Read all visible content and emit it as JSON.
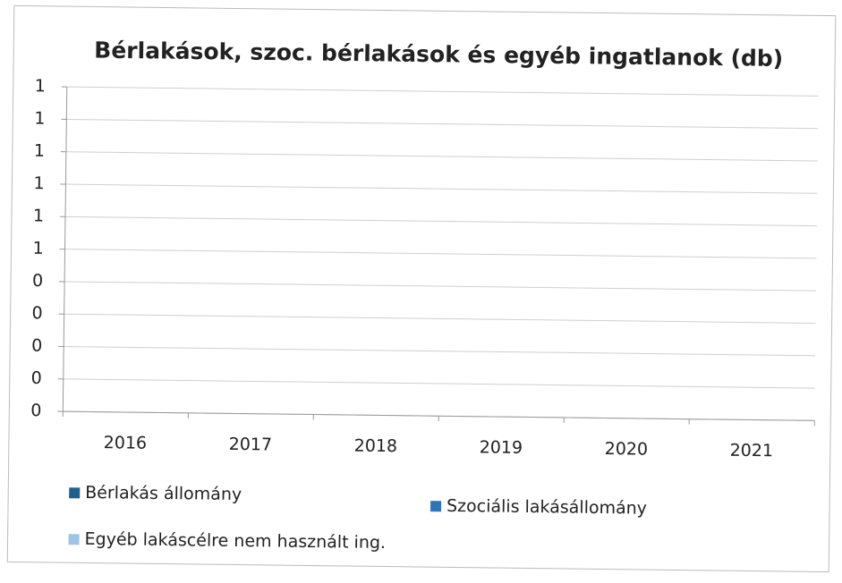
{
  "chart_data": {
    "type": "bar",
    "title": "Bérlakások, szoc. bérlakások és egyéb ingatlanok (db)",
    "categories": [
      "2016",
      "2017",
      "2018",
      "2019",
      "2020",
      "2021"
    ],
    "series": [
      {
        "name": "Bérlakás állomány",
        "color": "#1f5f8b",
        "values": [
          null,
          null,
          null,
          null,
          null,
          null
        ]
      },
      {
        "name": "Szociális lakásállomány",
        "color": "#2e75b6",
        "values": [
          null,
          null,
          null,
          null,
          null,
          null
        ]
      },
      {
        "name": "Egyéb lakáscélre nem használt ing.",
        "color": "#9dc3e6",
        "values": [
          null,
          null,
          null,
          null,
          null,
          null
        ]
      }
    ],
    "ylim": [
      0,
      1
    ],
    "yticks": [
      0,
      {
        "value": 0.1,
        "label": "0"
      },
      {
        "value": 0.2,
        "label": "0"
      },
      {
        "value": 0.3,
        "label": "0"
      },
      {
        "value": 0.4,
        "label": "0"
      },
      {
        "value": 0.5,
        "label": "1"
      },
      {
        "value": 0.6,
        "label": "1"
      },
      {
        "value": 0.7,
        "label": "1"
      },
      {
        "value": 0.8,
        "label": "1"
      },
      {
        "value": 0.9,
        "label": "1"
      },
      1
    ],
    "grid": true
  }
}
